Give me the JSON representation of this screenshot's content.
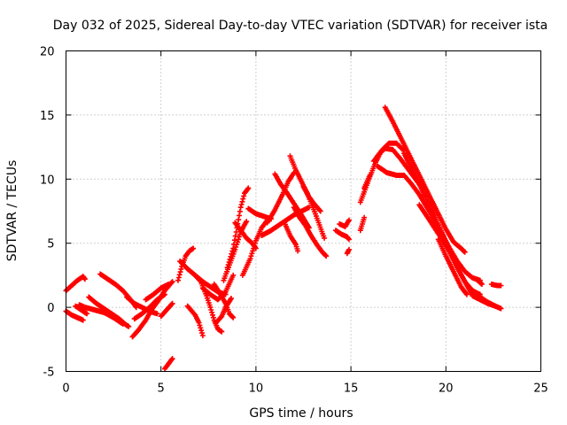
{
  "chart_data": {
    "type": "scatter",
    "title": "Day 032 of 2025, Sidereal Day-to-day VTEC variation (SDTVAR) for receiver ista",
    "xlabel": "GPS time / hours",
    "ylabel": "SDTVAR / TECUs",
    "xlim": [
      0,
      25
    ],
    "ylim": [
      -5,
      20
    ],
    "grid": true,
    "x_ticks": [
      0,
      5,
      10,
      15,
      20,
      25
    ],
    "x_tick_labels": [
      "0",
      "5",
      "10",
      "15",
      "20",
      "25"
    ],
    "y_ticks": [
      -5,
      0,
      5,
      10,
      15,
      20
    ],
    "y_tick_labels": [
      "-5",
      "0",
      "5",
      "10",
      "15",
      "20"
    ],
    "marker": "+",
    "series": [
      {
        "name": "SDTVAR",
        "color": "#ff0000",
        "tracks": [
          [
            [
              0.0,
              -0.3
            ],
            [
              0.3,
              -0.6
            ],
            [
              0.6,
              -0.8
            ],
            [
              0.9,
              -1.0
            ]
          ],
          [
            [
              0.0,
              1.3
            ],
            [
              0.3,
              1.7
            ],
            [
              0.6,
              2.1
            ],
            [
              0.9,
              2.4
            ],
            [
              1.0,
              2.2
            ]
          ],
          [
            [
              0.5,
              0.1
            ],
            [
              0.8,
              -0.2
            ],
            [
              1.1,
              -0.5
            ]
          ],
          [
            [
              1.2,
              0.8
            ],
            [
              1.6,
              0.3
            ],
            [
              2.0,
              -0.1
            ],
            [
              2.4,
              -0.5
            ],
            [
              2.8,
              -0.9
            ],
            [
              3.1,
              -1.3
            ],
            [
              3.3,
              -1.5
            ]
          ],
          [
            [
              0.7,
              0.2
            ],
            [
              1.0,
              0.0
            ],
            [
              1.5,
              -0.2
            ],
            [
              2.0,
              -0.4
            ],
            [
              2.5,
              -0.8
            ],
            [
              3.0,
              -1.3
            ]
          ],
          [
            [
              1.8,
              2.6
            ],
            [
              2.2,
              2.2
            ],
            [
              2.6,
              1.8
            ],
            [
              3.0,
              1.3
            ],
            [
              3.4,
              0.6
            ],
            [
              3.7,
              0.0
            ]
          ],
          [
            [
              3.2,
              0.8
            ],
            [
              3.6,
              0.3
            ],
            [
              4.0,
              0.0
            ],
            [
              4.4,
              -0.3
            ],
            [
              4.8,
              -0.5
            ]
          ],
          [
            [
              3.5,
              -2.3
            ],
            [
              3.8,
              -1.8
            ],
            [
              4.2,
              -1.0
            ],
            [
              4.5,
              -0.2
            ],
            [
              4.9,
              0.6
            ],
            [
              5.2,
              1.3
            ],
            [
              5.6,
              2.0
            ]
          ],
          [
            [
              3.6,
              -0.9
            ],
            [
              4.0,
              -0.5
            ],
            [
              4.4,
              0.0
            ],
            [
              4.8,
              0.6
            ],
            [
              5.2,
              1.0
            ]
          ],
          [
            [
              4.2,
              0.6
            ],
            [
              4.6,
              1.0
            ],
            [
              5.0,
              1.5
            ],
            [
              5.4,
              1.8
            ]
          ],
          [
            [
              5.0,
              -0.7
            ],
            [
              5.3,
              -0.2
            ],
            [
              5.6,
              0.3
            ]
          ],
          [
            [
              5.2,
              -4.8
            ],
            [
              5.4,
              -4.4
            ],
            [
              5.6,
              -4.0
            ]
          ],
          [
            [
              5.9,
              2.1
            ],
            [
              6.1,
              3.2
            ],
            [
              6.3,
              4.0
            ],
            [
              6.5,
              4.4
            ],
            [
              6.7,
              4.6
            ]
          ],
          [
            [
              6.0,
              3.6
            ],
            [
              6.4,
              3.0
            ],
            [
              6.8,
              2.5
            ],
            [
              7.2,
              2.0
            ],
            [
              7.6,
              1.6
            ],
            [
              8.0,
              1.2
            ],
            [
              8.4,
              1.0
            ]
          ],
          [
            [
              6.4,
              0.1
            ],
            [
              6.8,
              -0.6
            ],
            [
              7.0,
              -1.2
            ],
            [
              7.2,
              -2.2
            ]
          ],
          [
            [
              6.8,
              2.5
            ],
            [
              7.1,
              2.0
            ],
            [
              7.4,
              0.9
            ],
            [
              7.6,
              0.0
            ],
            [
              7.8,
              -1.0
            ],
            [
              8.0,
              -1.7
            ],
            [
              8.2,
              -1.9
            ]
          ],
          [
            [
              7.2,
              1.5
            ],
            [
              7.6,
              1.0
            ],
            [
              8.0,
              0.6
            ],
            [
              8.4,
              1.2
            ],
            [
              8.8,
              2.5
            ]
          ],
          [
            [
              7.8,
              1.8
            ],
            [
              8.1,
              1.1
            ],
            [
              8.4,
              0.3
            ],
            [
              8.6,
              -0.5
            ],
            [
              8.8,
              -0.8
            ]
          ],
          [
            [
              7.9,
              -1.2
            ],
            [
              8.2,
              -0.7
            ],
            [
              8.4,
              0.0
            ],
            [
              8.7,
              0.7
            ]
          ],
          [
            [
              8.3,
              2.1
            ],
            [
              8.6,
              3.3
            ],
            [
              8.9,
              4.5
            ],
            [
              9.2,
              5.9
            ],
            [
              9.5,
              6.7
            ]
          ],
          [
            [
              8.5,
              3.1
            ],
            [
              8.8,
              4.6
            ],
            [
              9.0,
              6.2
            ],
            [
              9.2,
              7.8
            ],
            [
              9.4,
              8.9
            ],
            [
              9.6,
              9.3
            ]
          ],
          [
            [
              8.9,
              6.6
            ],
            [
              9.2,
              6.0
            ],
            [
              9.5,
              5.4
            ],
            [
              9.8,
              5.0
            ],
            [
              10.0,
              4.6
            ]
          ],
          [
            [
              9.3,
              2.5
            ],
            [
              9.7,
              3.8
            ],
            [
              10.0,
              5.2
            ],
            [
              10.3,
              6.2
            ],
            [
              10.6,
              6.8
            ]
          ],
          [
            [
              9.6,
              7.7
            ],
            [
              10.0,
              7.3
            ],
            [
              10.4,
              7.1
            ],
            [
              10.8,
              6.9
            ]
          ],
          [
            [
              10.3,
              5.6
            ],
            [
              10.8,
              6.0
            ],
            [
              11.2,
              6.4
            ],
            [
              11.6,
              6.8
            ],
            [
              12.0,
              7.2
            ],
            [
              12.4,
              7.5
            ],
            [
              12.8,
              7.8
            ]
          ],
          [
            [
              10.6,
              6.6
            ],
            [
              11.0,
              7.6
            ],
            [
              11.4,
              8.8
            ],
            [
              11.7,
              9.8
            ],
            [
              12.0,
              10.5
            ]
          ],
          [
            [
              11.0,
              10.4
            ],
            [
              11.3,
              9.6
            ],
            [
              11.6,
              9.0
            ],
            [
              12.0,
              8.1
            ],
            [
              12.4,
              7.2
            ],
            [
              12.8,
              6.2
            ]
          ],
          [
            [
              11.8,
              11.8
            ],
            [
              12.1,
              10.7
            ],
            [
              12.4,
              9.8
            ],
            [
              12.7,
              8.9
            ],
            [
              13.0,
              7.8
            ],
            [
              13.3,
              6.6
            ],
            [
              13.6,
              5.4
            ]
          ],
          [
            [
              12.0,
              7.8
            ],
            [
              12.3,
              7.0
            ],
            [
              12.6,
              6.4
            ],
            [
              12.9,
              5.6
            ],
            [
              13.2,
              4.9
            ],
            [
              13.5,
              4.3
            ],
            [
              13.7,
              4.0
            ]
          ],
          [
            [
              11.5,
              6.6
            ],
            [
              11.8,
              5.6
            ],
            [
              12.1,
              4.9
            ],
            [
              12.2,
              4.4
            ]
          ],
          [
            [
              12.5,
              9.4
            ],
            [
              12.8,
              8.6
            ],
            [
              13.1,
              8.0
            ],
            [
              13.4,
              7.5
            ]
          ],
          [
            [
              14.2,
              6.0
            ],
            [
              14.5,
              5.7
            ],
            [
              14.8,
              5.5
            ],
            [
              14.9,
              5.3
            ]
          ],
          [
            [
              14.4,
              6.5
            ],
            [
              14.7,
              6.3
            ],
            [
              14.9,
              6.8
            ]
          ],
          [
            [
              14.8,
              4.2
            ],
            [
              14.9,
              4.5
            ]
          ],
          [
            [
              15.5,
              6.0
            ],
            [
              15.6,
              6.5
            ],
            [
              15.7,
              7.0
            ]
          ],
          [
            [
              15.5,
              8.2
            ],
            [
              15.7,
              9.0
            ],
            [
              16.0,
              10.2
            ],
            [
              16.3,
              11.3
            ],
            [
              16.6,
              12.2
            ],
            [
              17.0,
              12.8
            ],
            [
              17.4,
              12.8
            ],
            [
              17.8,
              12.2
            ]
          ],
          [
            [
              15.7,
              9.3
            ],
            [
              16.0,
              10.3
            ]
          ],
          [
            [
              16.2,
              11.4
            ],
            [
              16.5,
              12.0
            ],
            [
              16.8,
              12.4
            ],
            [
              17.2,
              12.3
            ],
            [
              17.6,
              11.6
            ],
            [
              18.0,
              10.8
            ],
            [
              18.4,
              10.0
            ],
            [
              18.8,
              9.2
            ]
          ],
          [
            [
              16.8,
              15.6
            ],
            [
              17.2,
              14.5
            ],
            [
              17.6,
              13.3
            ],
            [
              18.0,
              12.1
            ],
            [
              18.4,
              10.9
            ],
            [
              18.8,
              9.7
            ],
            [
              19.2,
              8.5
            ],
            [
              19.6,
              7.3
            ],
            [
              20.0,
              6.1
            ],
            [
              20.4,
              5.1
            ],
            [
              20.8,
              4.6
            ],
            [
              21.0,
              4.3
            ]
          ],
          [
            [
              16.4,
              11.0
            ],
            [
              16.9,
              10.5
            ],
            [
              17.4,
              10.3
            ],
            [
              17.8,
              10.3
            ],
            [
              18.2,
              9.6
            ],
            [
              18.6,
              8.8
            ],
            [
              19.0,
              7.8
            ],
            [
              19.4,
              6.8
            ],
            [
              19.8,
              5.7
            ],
            [
              20.2,
              4.6
            ],
            [
              20.6,
              3.6
            ],
            [
              21.0,
              2.8
            ],
            [
              21.4,
              2.3
            ],
            [
              21.8,
              2.1
            ]
          ],
          [
            [
              17.8,
              12.0
            ],
            [
              18.2,
              10.8
            ],
            [
              18.6,
              9.6
            ],
            [
              19.0,
              8.4
            ],
            [
              19.4,
              7.2
            ],
            [
              19.8,
              5.8
            ],
            [
              20.2,
              4.5
            ],
            [
              20.6,
              3.1
            ],
            [
              21.0,
              2.0
            ],
            [
              21.4,
              1.3
            ],
            [
              21.8,
              1.0
            ]
          ],
          [
            [
              18.6,
              8.0
            ],
            [
              19.0,
              7.1
            ],
            [
              19.4,
              6.2
            ],
            [
              19.8,
              5.3
            ],
            [
              20.2,
              4.3
            ],
            [
              20.6,
              3.1
            ],
            [
              21.0,
              2.0
            ],
            [
              21.4,
              0.9
            ],
            [
              21.8,
              0.6
            ],
            [
              22.2,
              0.3
            ],
            [
              22.6,
              0.1
            ],
            [
              22.9,
              -0.1
            ]
          ],
          [
            [
              19.6,
              5.3
            ],
            [
              20.0,
              4.0
            ],
            [
              20.4,
              2.8
            ],
            [
              20.8,
              1.6
            ],
            [
              21.1,
              1.0
            ]
          ],
          [
            [
              21.4,
              1.3
            ],
            [
              21.8,
              0.8
            ],
            [
              22.2,
              0.4
            ],
            [
              22.6,
              0.1
            ]
          ],
          [
            [
              21.6,
              2.2
            ],
            [
              21.9,
              1.8
            ]
          ],
          [
            [
              22.4,
              1.8
            ],
            [
              22.7,
              1.7
            ],
            [
              22.9,
              1.7
            ]
          ]
        ]
      }
    ]
  }
}
